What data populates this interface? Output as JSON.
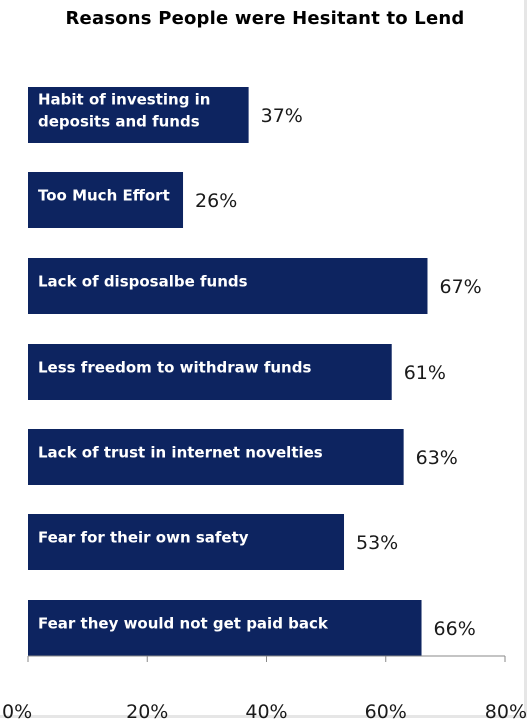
{
  "chart_data": {
    "type": "bar",
    "orientation": "horizontal",
    "title": "Reasons People were Hesitant to Lend",
    "categories": [
      [
        "Habit of investing in",
        "deposits and funds"
      ],
      [
        "Too Much Effort"
      ],
      [
        "Lack of disposalbe funds"
      ],
      [
        "Less freedom to withdraw funds"
      ],
      [
        "Lack of trust in internet novelties"
      ],
      [
        "Fear for their own safety"
      ],
      [
        "Fear they would not get paid back"
      ]
    ],
    "values": [
      37,
      26,
      67,
      61,
      63,
      53,
      66
    ],
    "value_labels": [
      "37%",
      "26%",
      "67%",
      "61%",
      "63%",
      "53%",
      "66%"
    ],
    "xlim": [
      0,
      80
    ],
    "xticks": [
      0,
      20,
      40,
      60,
      80
    ],
    "xtick_labels": [
      "0%",
      "20%",
      "40%",
      "60%",
      "80%"
    ],
    "bar_color": "#0d2460",
    "grid": false,
    "legend": "none"
  }
}
